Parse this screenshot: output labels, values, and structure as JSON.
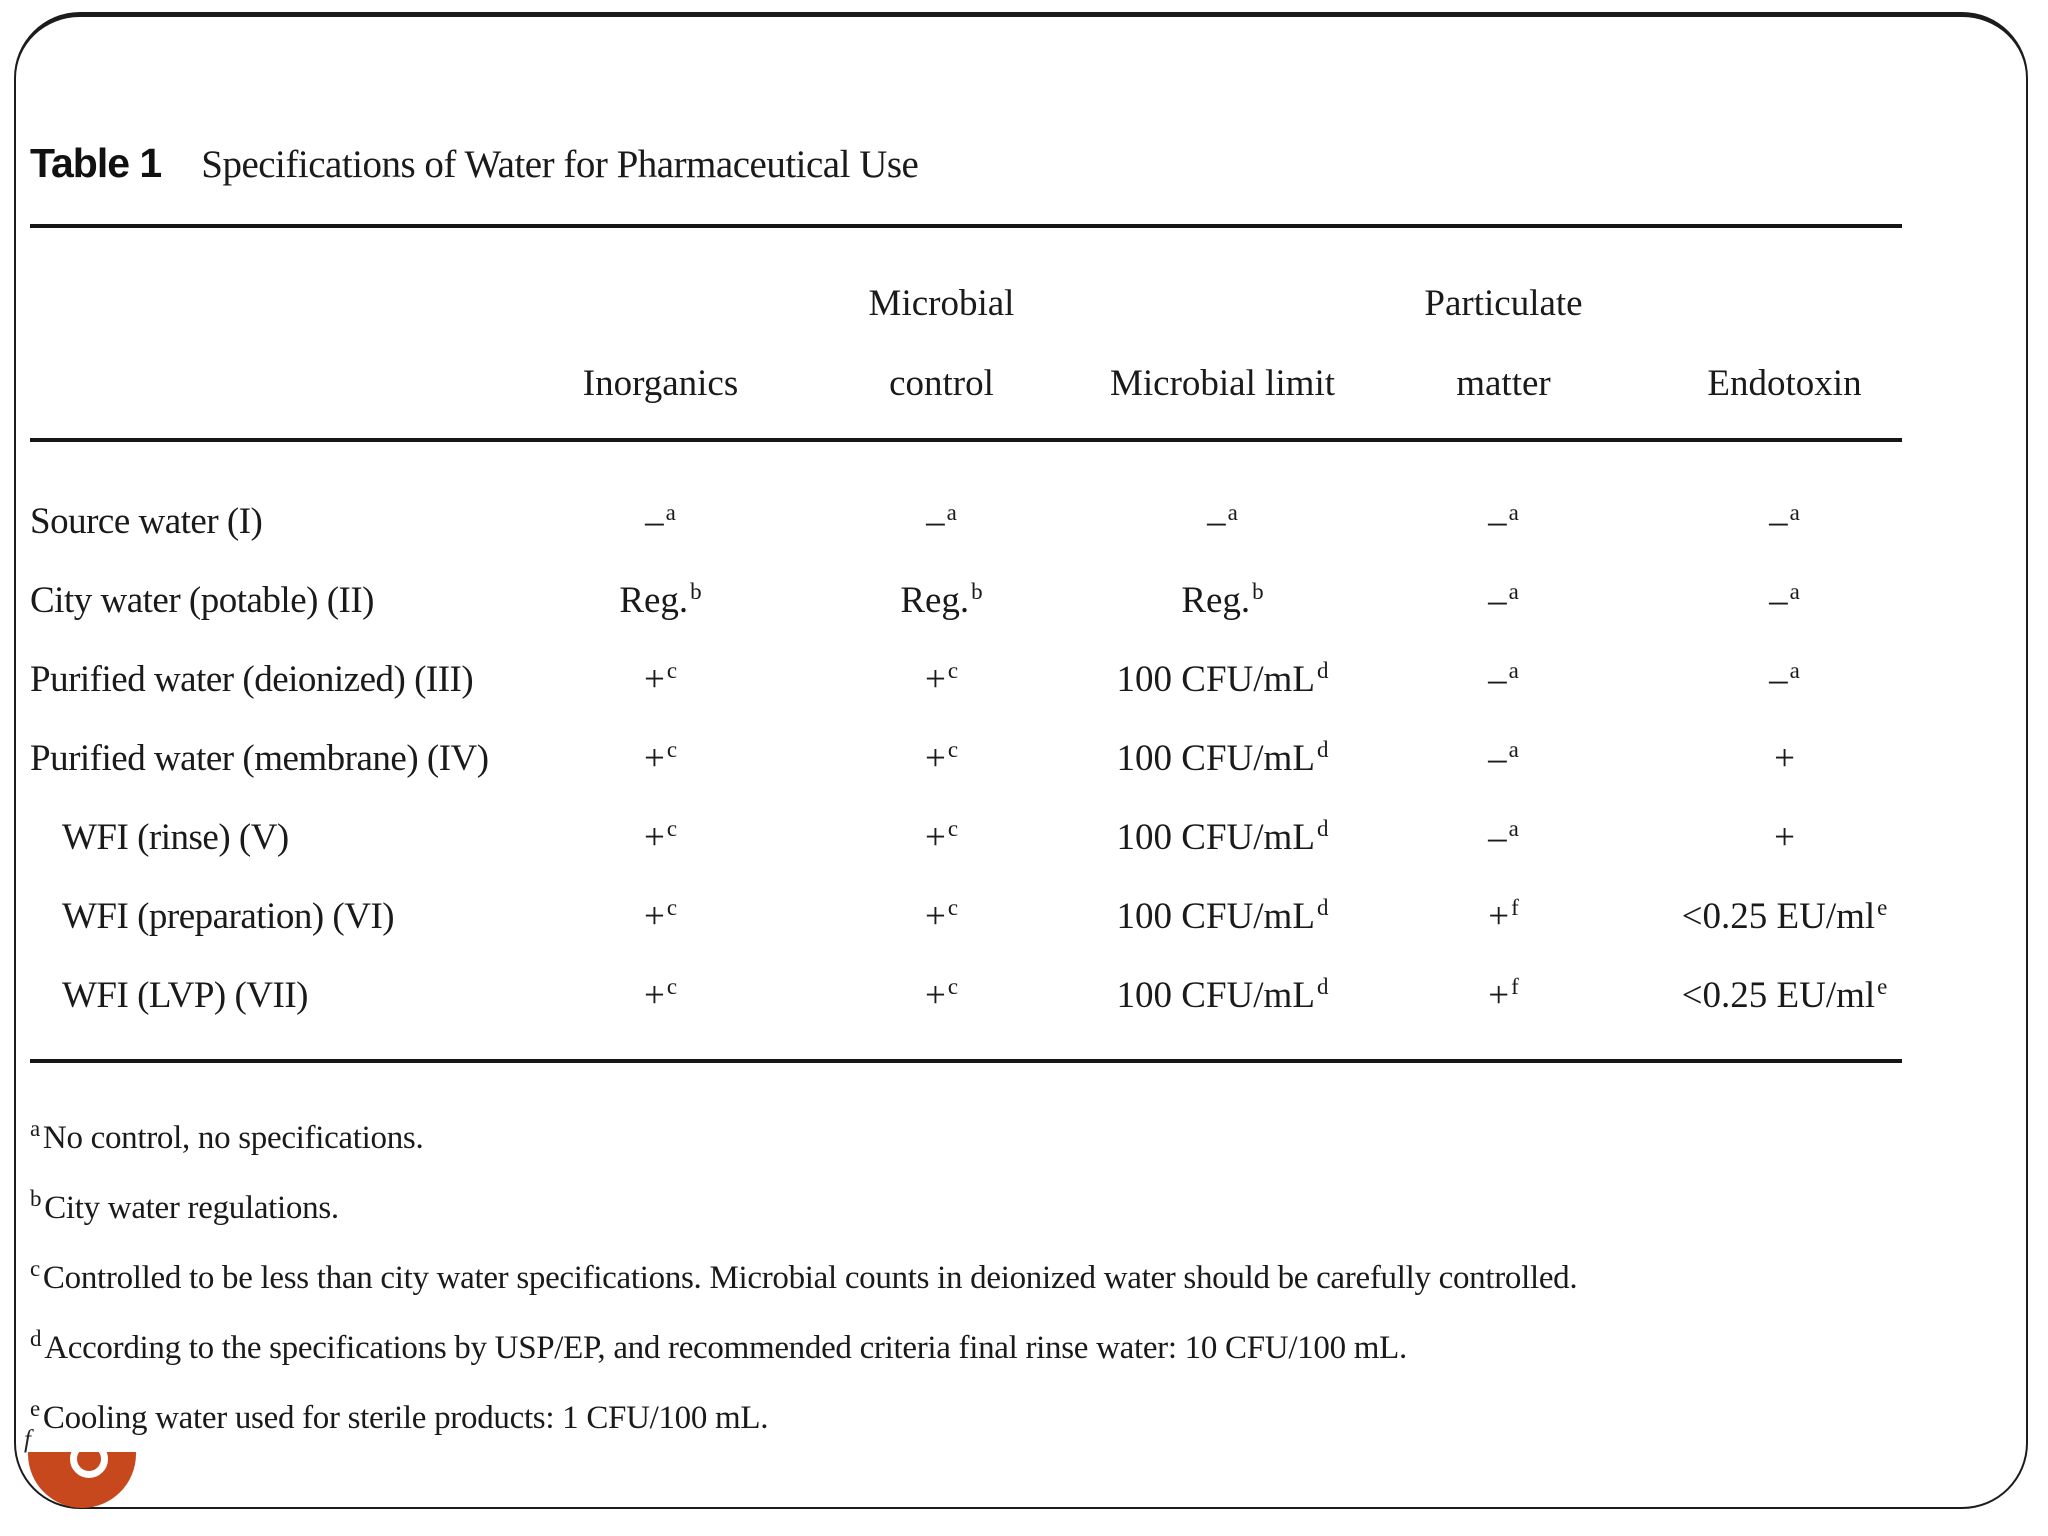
{
  "slide": {
    "accent_color": "#C8481E",
    "bullet_ring_color": "#FFFFFF"
  },
  "table": {
    "label": "Table 1",
    "caption": "Specifications of Water for Pharmaceutical Use",
    "cutoff_footnote_marker": "f",
    "columns": [
      {
        "line1": "",
        "line2": "Inorganics"
      },
      {
        "line1": "Microbial",
        "line2": "control"
      },
      {
        "line1": "",
        "line2": "Microbial limit"
      },
      {
        "line1": "Particulate",
        "line2": "matter"
      },
      {
        "line1": "",
        "line2": "Endotoxin"
      }
    ],
    "rows": [
      {
        "label": "Source water (I)",
        "indent": false,
        "cells": [
          {
            "t": "–",
            "s": "a"
          },
          {
            "t": "–",
            "s": "a"
          },
          {
            "t": "–",
            "s": "a"
          },
          {
            "t": "–",
            "s": "a"
          },
          {
            "t": "–",
            "s": "a"
          }
        ]
      },
      {
        "label": "City water (potable) (II)",
        "indent": false,
        "cells": [
          {
            "t": "Reg.",
            "s": "b"
          },
          {
            "t": "Reg.",
            "s": "b"
          },
          {
            "t": "Reg.",
            "s": "b"
          },
          {
            "t": "–",
            "s": "a"
          },
          {
            "t": "–",
            "s": "a"
          }
        ]
      },
      {
        "label": "Purified water (deionized) (III)",
        "indent": false,
        "cells": [
          {
            "t": "+",
            "s": "c"
          },
          {
            "t": "+",
            "s": "c"
          },
          {
            "t": "100 CFU/mL",
            "s": "d"
          },
          {
            "t": "–",
            "s": "a"
          },
          {
            "t": "–",
            "s": "a"
          }
        ]
      },
      {
        "label": "Purified water (membrane) (IV)",
        "indent": false,
        "cells": [
          {
            "t": "+",
            "s": "c"
          },
          {
            "t": "+",
            "s": "c"
          },
          {
            "t": "100 CFU/mL",
            "s": "d"
          },
          {
            "t": "–",
            "s": "a"
          },
          {
            "t": "+",
            "s": ""
          }
        ]
      },
      {
        "label": "WFI (rinse) (V)",
        "indent": true,
        "cells": [
          {
            "t": "+",
            "s": "c"
          },
          {
            "t": "+",
            "s": "c"
          },
          {
            "t": "100 CFU/mL",
            "s": "d"
          },
          {
            "t": "–",
            "s": "a"
          },
          {
            "t": "+",
            "s": ""
          }
        ]
      },
      {
        "label": "WFI (preparation) (VI)",
        "indent": true,
        "cells": [
          {
            "t": "+",
            "s": "c"
          },
          {
            "t": "+",
            "s": "c"
          },
          {
            "t": "100 CFU/mL",
            "s": "d"
          },
          {
            "t": "+",
            "s": "f"
          },
          {
            "t": "<0.25 EU/ml",
            "s": "e"
          }
        ]
      },
      {
        "label": "WFI (LVP) (VII)",
        "indent": true,
        "cells": [
          {
            "t": "+",
            "s": "c"
          },
          {
            "t": "+",
            "s": "c"
          },
          {
            "t": "100 CFU/mL",
            "s": "d"
          },
          {
            "t": "+",
            "s": "f"
          },
          {
            "t": "<0.25 EU/ml",
            "s": "e"
          }
        ]
      }
    ],
    "footnotes": [
      {
        "sup": "a",
        "text": "No control, no specifications."
      },
      {
        "sup": "b",
        "text": "City water regulations."
      },
      {
        "sup": "c",
        "text": "Controlled to be less than city water specifications. Microbial counts in deionized water should be carefully controlled."
      },
      {
        "sup": "d",
        "text": "According to the specifications by USP/EP, and recommended criteria final rinse water: 10 CFU/100 mL."
      },
      {
        "sup": "e",
        "text": "Cooling water used for sterile products: 1 CFU/100 mL."
      }
    ]
  }
}
